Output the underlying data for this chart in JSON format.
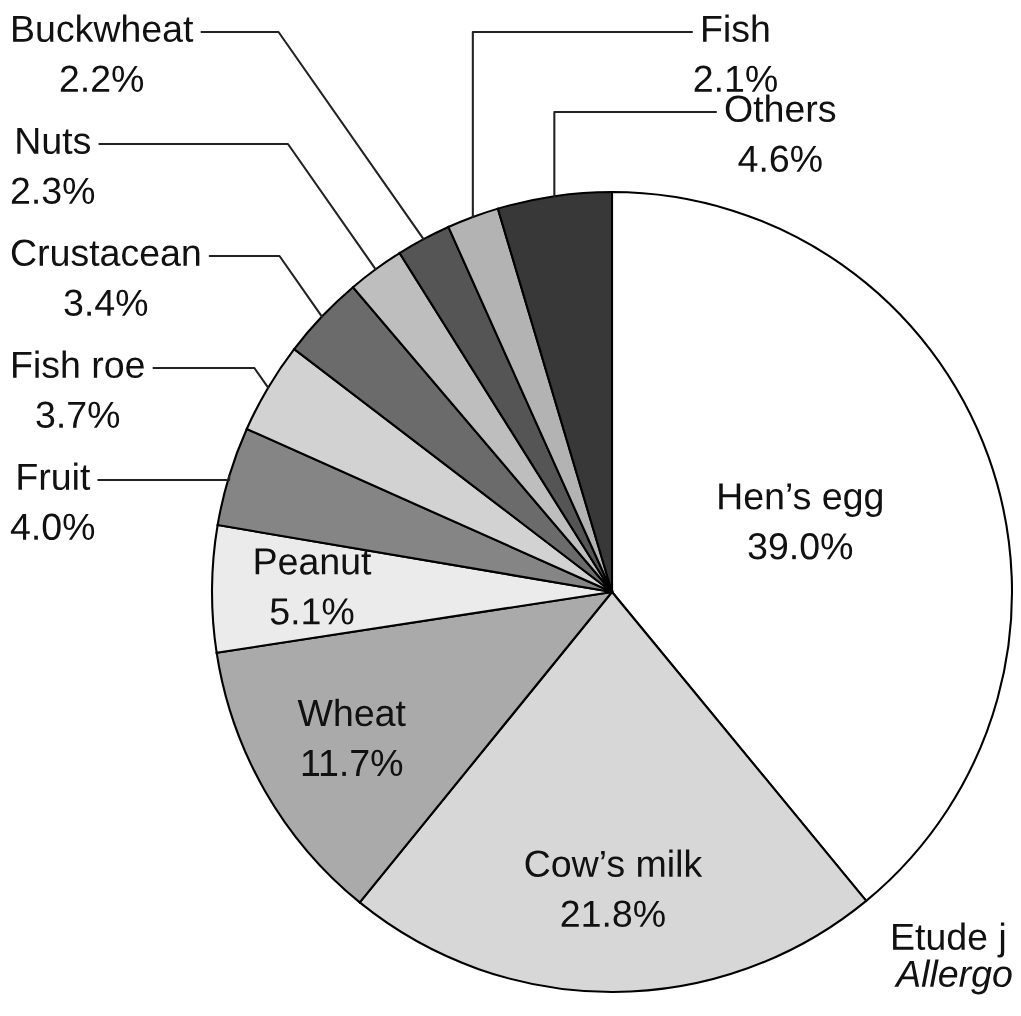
{
  "chart_data": {
    "type": "pie",
    "categories": [
      "Hen’s egg",
      "Cow’s milk",
      "Wheat",
      "Peanut",
      "Fruit",
      "Fish roe",
      "Crustacean",
      "Nuts",
      "Buckwheat",
      "Fish",
      "Others"
    ],
    "values": [
      39.0,
      21.8,
      11.7,
      5.1,
      4.0,
      3.7,
      3.4,
      2.3,
      2.2,
      2.1,
      4.6
    ],
    "value_labels": [
      "39.0%",
      "21.8%",
      "11.7%",
      "5.1%",
      "4.0%",
      "3.7%",
      "3.4%",
      "2.3%",
      "2.2%",
      "2.1%",
      "4.6%"
    ],
    "colors": [
      "#ffffff",
      "#d7d7d7",
      "#aaaaaa",
      "#ebebeb",
      "#858585",
      "#d2d2d2",
      "#6b6b6b",
      "#bebebe",
      "#555555",
      "#b3b3b3",
      "#383838"
    ],
    "annotations": [
      "Etude j",
      "Allergo"
    ]
  }
}
